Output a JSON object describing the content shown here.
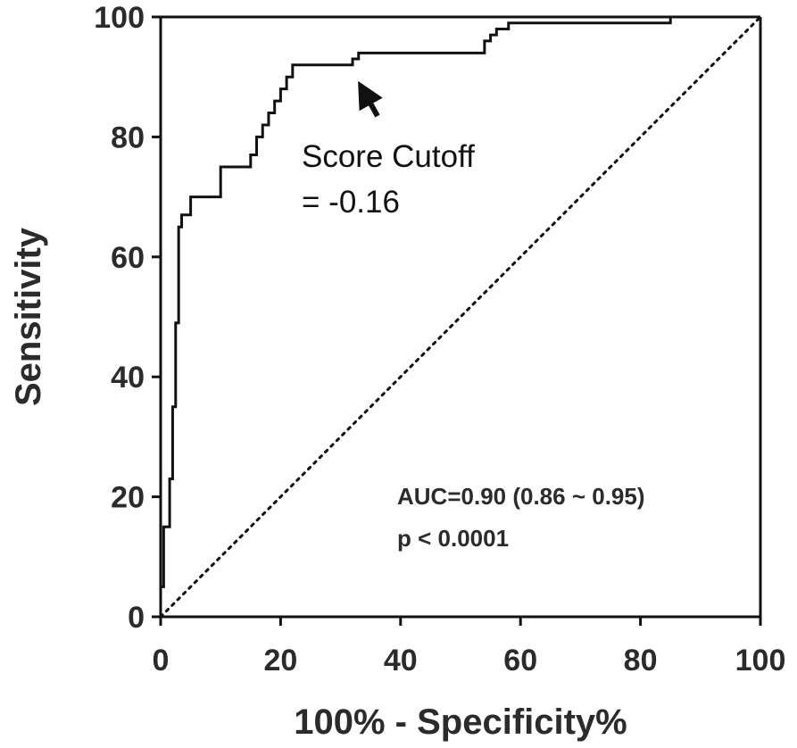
{
  "chart_data": {
    "type": "line",
    "xlabel": "100% - Specificity%",
    "ylabel": "Sensitivity",
    "xlim": [
      0,
      100
    ],
    "ylim": [
      0,
      100
    ],
    "x_ticks": [
      "0",
      "20",
      "40",
      "60",
      "80",
      "100"
    ],
    "y_ticks": [
      "0",
      "20",
      "40",
      "60",
      "80",
      "100"
    ],
    "grid": false,
    "series": [
      {
        "type": "step",
        "color": "#111111",
        "x": [
          0,
          0.5,
          1.5,
          2.0,
          2.5,
          3.0,
          3.5,
          5.0,
          10.0,
          15.0,
          16.0,
          17.0,
          18.0,
          19.0,
          20.0,
          21.0,
          22.0,
          23.0,
          32.0,
          33.0,
          35.0,
          54.0,
          55.0,
          56.0,
          58.0,
          60.0,
          85.0
        ],
        "y": [
          5,
          15,
          23,
          35,
          49,
          65,
          67,
          70,
          75,
          77,
          80,
          82,
          84,
          86,
          88,
          90,
          92,
          92,
          93,
          94,
          94,
          96,
          97,
          98,
          99,
          99,
          100
        ]
      },
      {
        "type": "reference",
        "style": "dotted",
        "color": "#111111",
        "x": [
          0,
          100
        ],
        "y": [
          0,
          100
        ]
      }
    ],
    "annotations": [
      {
        "line1": "Score Cutoff",
        "line2": "= -0.16",
        "point": [
          32,
          91
        ]
      },
      {
        "line1": "AUC=0.90 (0.86 ~ 0.95)",
        "line2": "p < 0.0001"
      }
    ]
  }
}
